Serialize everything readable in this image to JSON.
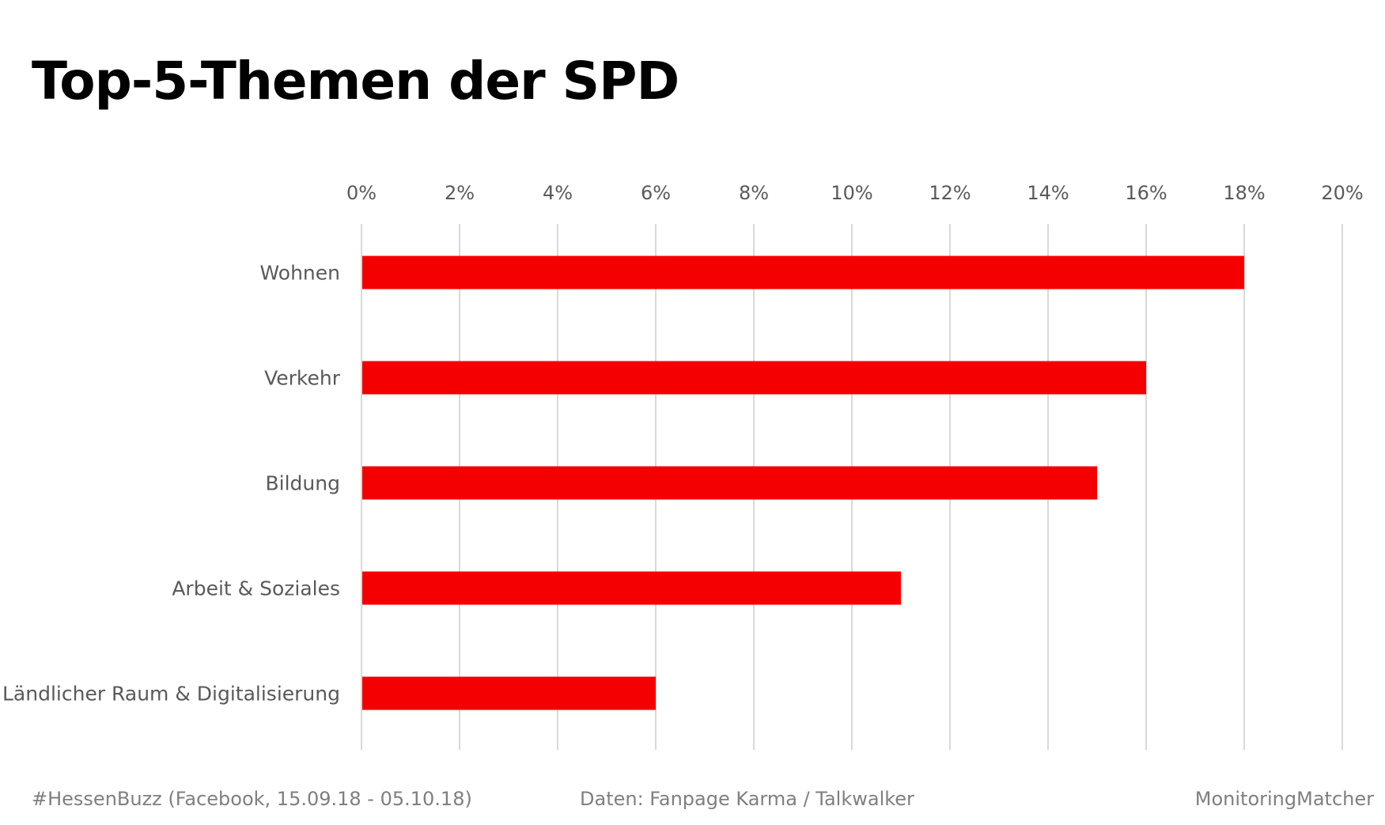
{
  "chart_data": {
    "type": "bar",
    "orientation": "horizontal",
    "title": "Top-5-Themen der SPD",
    "categories": [
      "Wohnen",
      "Verkehr",
      "Bildung",
      "Arbeit & Soziales",
      "Ländlicher Raum & Digitalisierung"
    ],
    "values": [
      0.18,
      0.16,
      0.15,
      0.11,
      0.06
    ],
    "xlim": [
      0,
      0.2
    ],
    "x_ticks": [
      "0%",
      "2%",
      "4%",
      "6%",
      "8%",
      "10%",
      "12%",
      "14%",
      "16%",
      "18%",
      "20%"
    ],
    "x_axis_position": "top",
    "grid": true,
    "legend": "none",
    "bar_color": "#f50000",
    "grid_color": "#d9d9d9",
    "label_color": "#595959"
  },
  "footer": {
    "left": "#HessenBuzz (Facebook, 15.09.18 - 05.10.18)",
    "center": "Daten: Fanpage Karma / Talkwalker",
    "right": "MonitoringMatcher"
  }
}
